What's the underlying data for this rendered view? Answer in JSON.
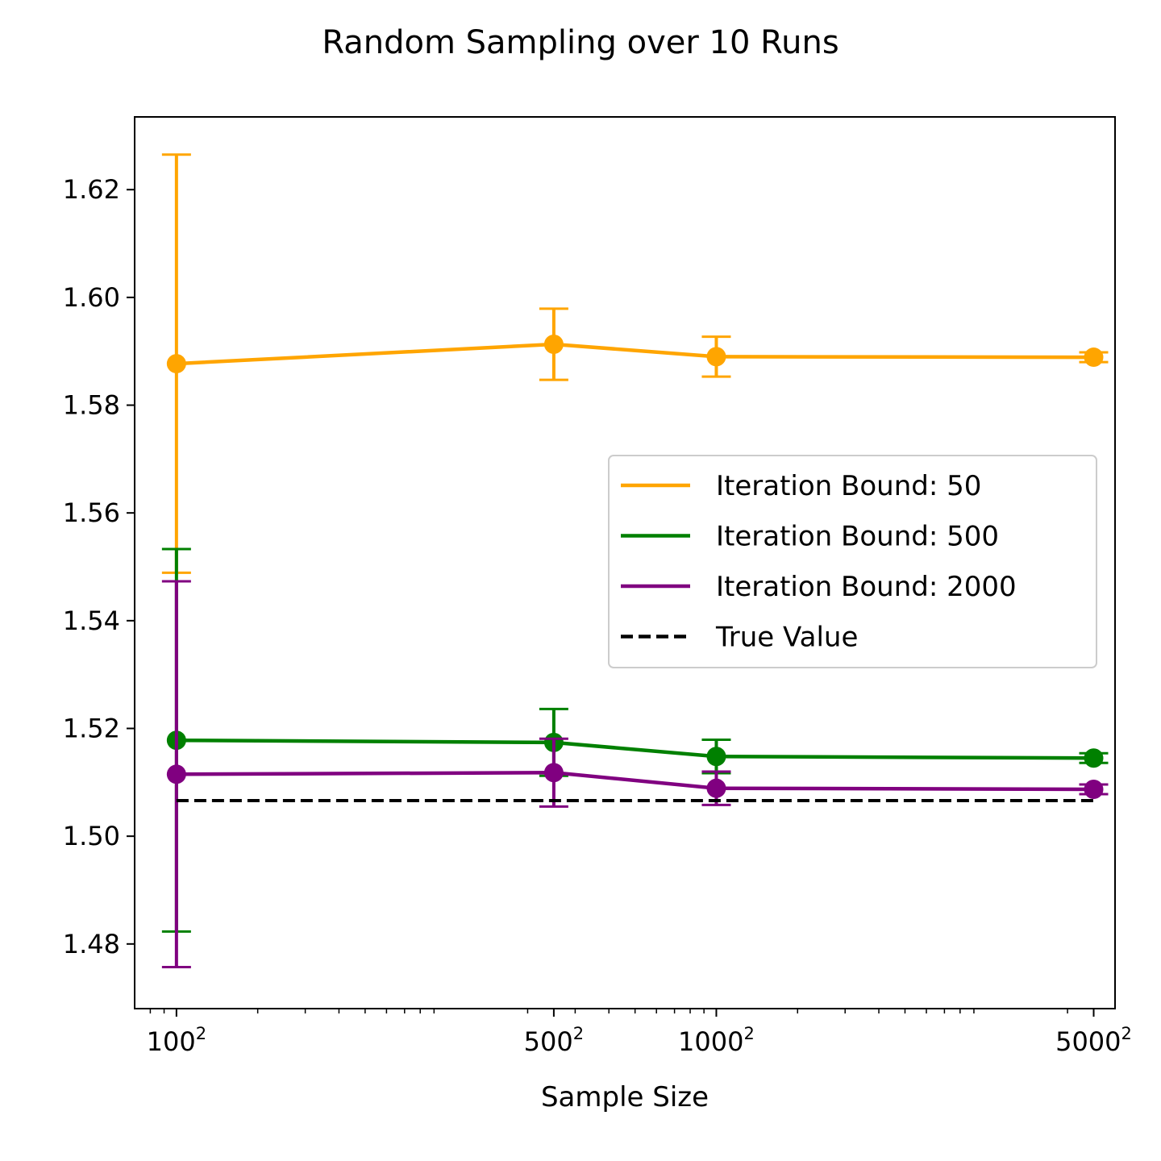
{
  "chart_data": {
    "type": "line",
    "title": "Random Sampling over 10 Runs",
    "xlabel": "Sample Size",
    "ylabel": "",
    "x_scale": "log",
    "x": [
      10000,
      250000,
      1000000,
      25000000
    ],
    "x_tick_labels": [
      {
        "base": "100",
        "exp": "2"
      },
      {
        "base": "500",
        "exp": "2"
      },
      {
        "base": "1000",
        "exp": "2"
      },
      {
        "base": "5000",
        "exp": "2"
      }
    ],
    "xlim": [
      7000,
      30000000
    ],
    "ylim": [
      1.468,
      1.6335
    ],
    "y_ticks": [
      "1.48",
      "1.50",
      "1.52",
      "1.54",
      "1.56",
      "1.58",
      "1.60",
      "1.62"
    ],
    "series": [
      {
        "name": "Iteration Bound: 50",
        "color": "#FFA500",
        "style": "solid",
        "values": [
          1.5877,
          1.5913,
          1.589,
          1.5889
        ],
        "error": [
          0.0388,
          0.0066,
          0.0037,
          0.0009
        ]
      },
      {
        "name": "Iteration Bound: 500",
        "color": "#008000",
        "style": "solid",
        "values": [
          1.5178,
          1.5174,
          1.5148,
          1.5145
        ],
        "error": [
          0.0355,
          0.0062,
          0.0031,
          0.0009
        ]
      },
      {
        "name": "Iteration Bound: 2000",
        "color": "#800080",
        "style": "solid",
        "values": [
          1.5115,
          1.5118,
          1.5089,
          1.5087
        ],
        "error": [
          0.0358,
          0.0063,
          0.0031,
          0.0009
        ]
      },
      {
        "name": "True Value",
        "color": "#000000",
        "style": "dashed",
        "values": [
          1.5066,
          1.5066,
          1.5066,
          1.5066
        ]
      }
    ],
    "legend_placement": "center-right",
    "grid": false
  }
}
